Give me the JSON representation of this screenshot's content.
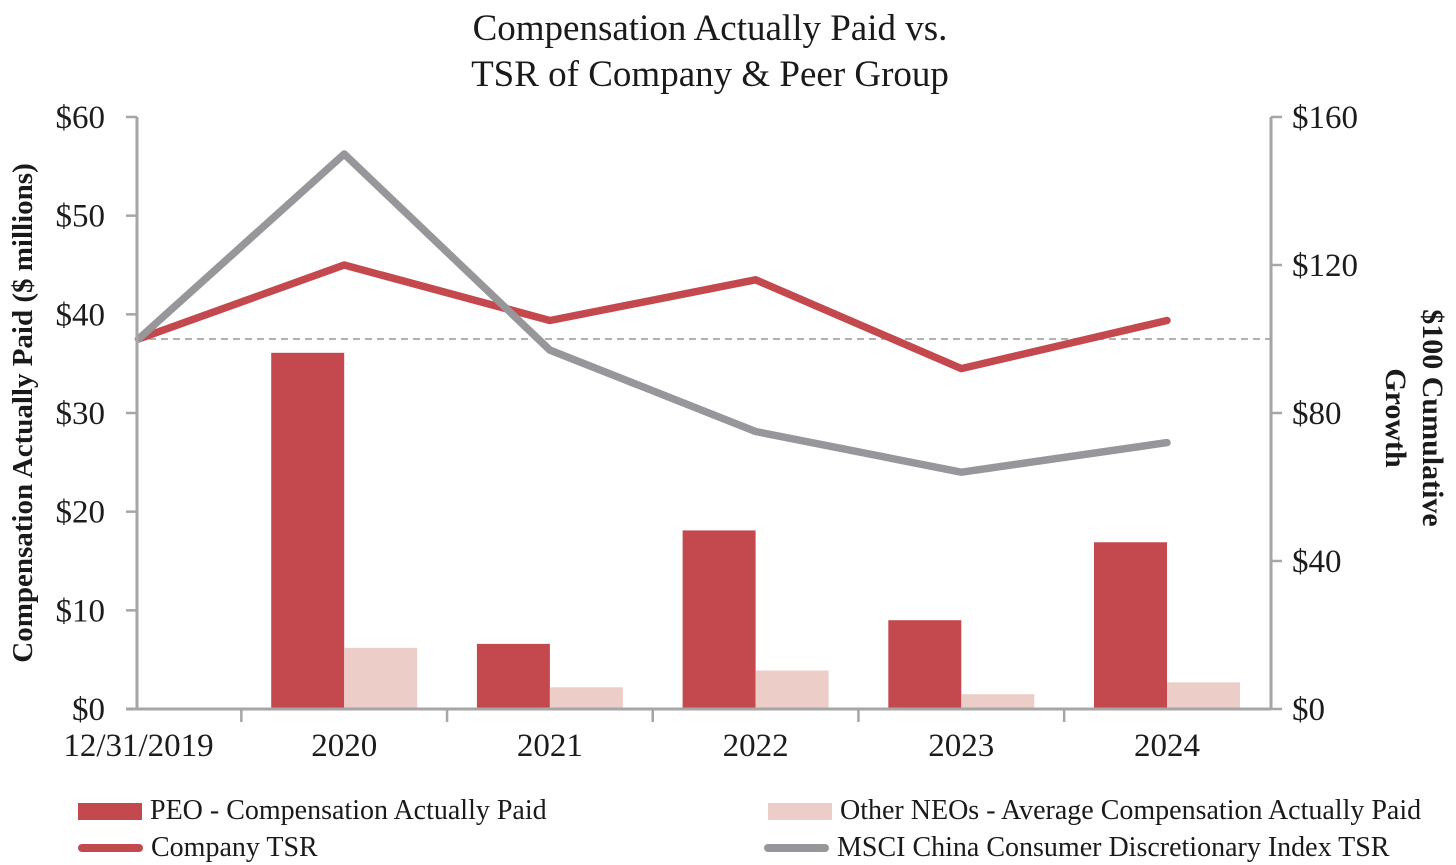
{
  "header": {
    "title_line1": "Compensation Actually Paid vs.",
    "title_line2": "TSR of Company & Peer Group"
  },
  "chart_data": {
    "type": "combo",
    "title": "Compensation Actually Paid vs. TSR of Company & Peer Group",
    "categories": [
      "12/31/2019",
      "2020",
      "2021",
      "2022",
      "2023",
      "2024"
    ],
    "series": [
      {
        "name": "PEO - Compensation Actually Paid",
        "type": "bar",
        "axis": "left",
        "color": "#C4494F",
        "values": [
          null,
          36.1,
          6.6,
          18.1,
          9.0,
          16.9
        ]
      },
      {
        "name": "Other NEOs - Average Compensation Actually Paid",
        "type": "bar",
        "axis": "left",
        "color": "#ECCDC8",
        "values": [
          null,
          6.2,
          2.2,
          3.9,
          1.5,
          2.7
        ]
      },
      {
        "name": "Company TSR",
        "type": "line",
        "axis": "right",
        "color": "#C4494F",
        "values": [
          100,
          120,
          105,
          116,
          92,
          105
        ]
      },
      {
        "name": "MSCI China Consumer Discretionary Index TSR",
        "type": "line",
        "axis": "right",
        "color": "#97969A",
        "values": [
          100,
          150,
          97,
          75,
          64,
          72
        ]
      }
    ],
    "left_axis": {
      "label": "Compensation Actually Paid ($ millions)",
      "min": 0,
      "max": 60,
      "tick_step": 10,
      "tick_labels": [
        "$0",
        "$10",
        "$20",
        "$30",
        "$40",
        "$50",
        "$60"
      ]
    },
    "right_axis": {
      "label": "$100 Cumulative Growth",
      "min": 0,
      "max": 160,
      "tick_step": 40,
      "tick_labels": [
        "$0",
        "$40",
        "$80",
        "$120",
        "$160"
      ]
    },
    "reference_line": {
      "axis": "right",
      "value": 100,
      "style": "dashed",
      "color": "#A6A6A6"
    },
    "legend_position": "bottom",
    "grid": "off"
  },
  "colors": {
    "axis": "#A6A6A6",
    "text": "#1C1C1C"
  }
}
